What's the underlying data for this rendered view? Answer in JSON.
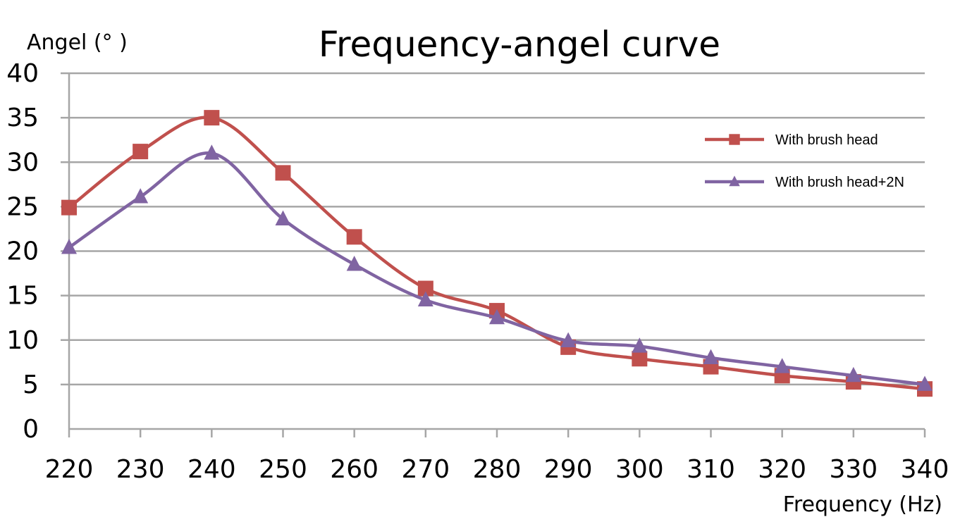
{
  "chart_data": {
    "type": "line",
    "title": "Frequency-angel curve",
    "xlabel": "Frequency (Hz)",
    "ylabel": "Angel (°  )",
    "x": [
      220,
      230,
      240,
      250,
      260,
      270,
      280,
      290,
      300,
      310,
      320,
      330,
      340
    ],
    "ylim": [
      0,
      40
    ],
    "yticks": [
      0,
      5,
      10,
      15,
      20,
      25,
      30,
      35,
      40
    ],
    "grid": true,
    "legend_position": "top-right",
    "smooth": true,
    "series": [
      {
        "name": "With brush head",
        "color": "#c0504d",
        "marker": "square",
        "values": [
          24.9,
          31.2,
          35.0,
          28.8,
          21.6,
          15.8,
          13.3,
          9.2,
          7.9,
          7.0,
          6.0,
          5.3,
          4.5
        ]
      },
      {
        "name": "With brush head+2N",
        "color": "#8064a2",
        "marker": "triangle",
        "values": [
          20.4,
          26.1,
          31.0,
          23.6,
          18.5,
          14.5,
          12.5,
          9.9,
          9.3,
          8.0,
          7.0,
          6.0,
          5.0
        ]
      }
    ]
  }
}
